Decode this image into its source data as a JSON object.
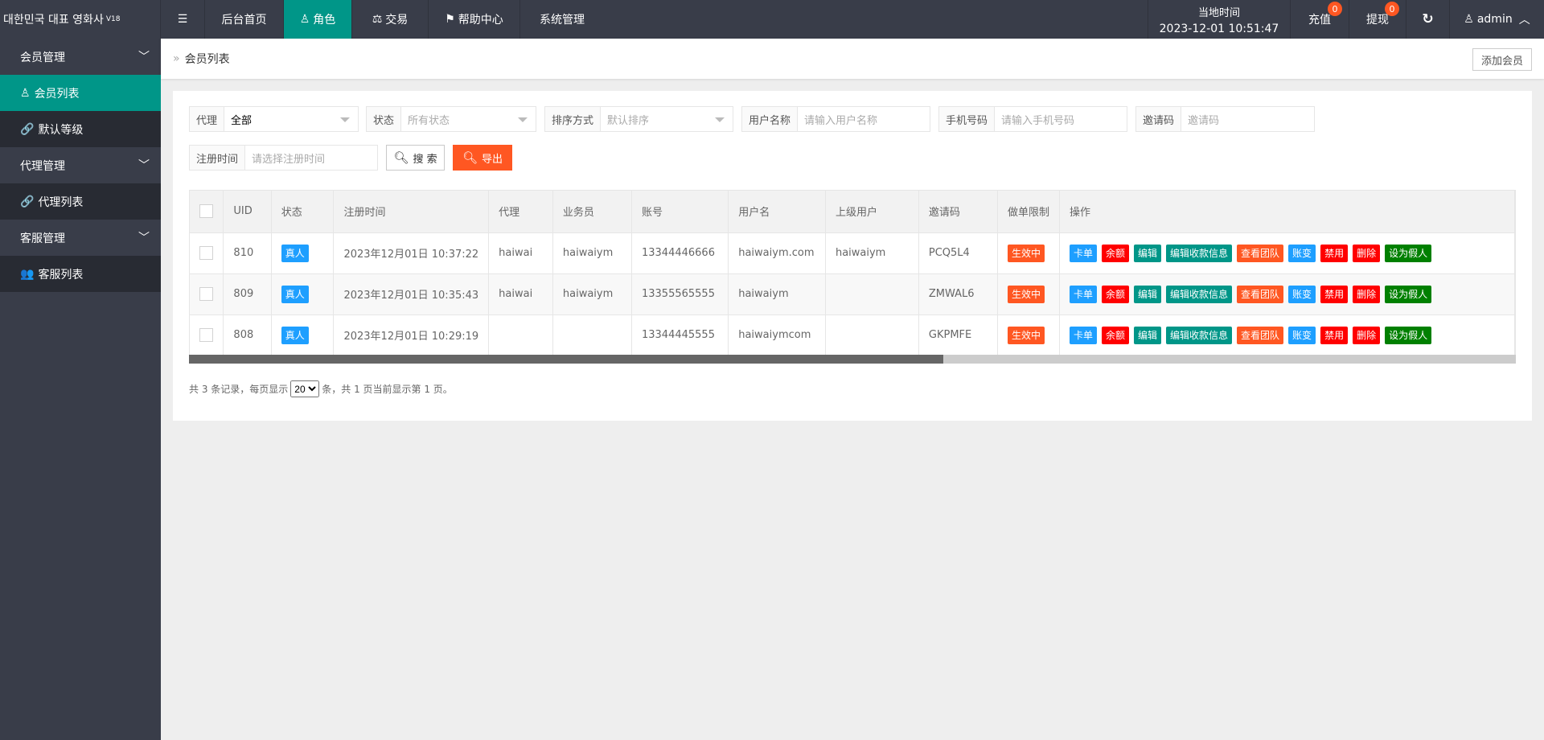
{
  "app": {
    "title": "대한민국 대표 영화사",
    "version": "V18"
  },
  "topnav": {
    "items": [
      {
        "label": "后台首页",
        "icon": ""
      },
      {
        "label": "角色",
        "icon": "user-icon",
        "active": true
      },
      {
        "label": "交易",
        "icon": "scale-icon"
      },
      {
        "label": "帮助中心",
        "icon": "flag-icon"
      },
      {
        "label": "系统管理",
        "icon": ""
      }
    ],
    "clock_label": "当地时间",
    "clock_value": "2023-12-01 10:51:47",
    "recharge": "充值",
    "recharge_count": "0",
    "withdraw": "提现",
    "withdraw_count": "0",
    "user": "admin"
  },
  "sidebar": {
    "groups": [
      {
        "label": "会员管理",
        "items": [
          {
            "label": "会员列表",
            "icon": "user-icon",
            "active": true
          },
          {
            "label": "默认等级",
            "icon": "link-icon"
          }
        ]
      },
      {
        "label": "代理管理",
        "items": [
          {
            "label": "代理列表",
            "icon": "link-icon"
          }
        ]
      },
      {
        "label": "客服管理",
        "items": [
          {
            "label": "客服列表",
            "icon": "users-icon"
          }
        ]
      }
    ]
  },
  "breadcrumb": {
    "current": "会员列表",
    "add_button": "添加会员"
  },
  "filters": {
    "agent": {
      "label": "代理",
      "value": "全部"
    },
    "status": {
      "label": "状态",
      "placeholder": "所有状态"
    },
    "sort": {
      "label": "排序方式",
      "placeholder": "默认排序"
    },
    "username": {
      "label": "用户名称",
      "placeholder": "请输入用户名称"
    },
    "phone": {
      "label": "手机号码",
      "placeholder": "请输入手机号码"
    },
    "invite": {
      "label": "邀请码",
      "placeholder": "邀请码"
    },
    "regtime": {
      "label": "注册时间",
      "placeholder": "请选择注册时间"
    },
    "search": "搜 索",
    "export": "导出"
  },
  "table": {
    "columns": [
      "UID",
      "状态",
      "注册时间",
      "代理",
      "业务员",
      "账号",
      "用户名",
      "上级用户",
      "邀请码",
      "做单限制",
      "操作"
    ],
    "rows": [
      {
        "uid": "810",
        "status": "真人",
        "time": "2023年12月01日 10:37:22",
        "agent": "haiwai",
        "staff": "haiwaiym",
        "account": "13344446666",
        "username": "haiwaiym.com",
        "parent": "haiwaiym",
        "invite": "PCQ5L4",
        "limit": "生效中"
      },
      {
        "uid": "809",
        "status": "真人",
        "time": "2023年12月01日 10:35:43",
        "agent": "haiwai",
        "staff": "haiwaiym",
        "account": "13355565555",
        "username": "haiwaiym",
        "parent": "",
        "invite": "ZMWAL6",
        "limit": "生效中"
      },
      {
        "uid": "808",
        "status": "真人",
        "time": "2023年12月01日 10:29:19",
        "agent": "",
        "staff": "",
        "account": "13344445555",
        "username": "haiwaiymcom",
        "parent": "",
        "invite": "GKPMFE",
        "limit": "生效中"
      }
    ],
    "actions": [
      {
        "label": "卡单",
        "color": "#1E9FFF"
      },
      {
        "label": "余额",
        "color": "#FF0000"
      },
      {
        "label": "编辑",
        "color": "#009688"
      },
      {
        "label": "编辑收款信息",
        "color": "#009688"
      },
      {
        "label": "查看团队",
        "color": "#FF5722"
      },
      {
        "label": "账变",
        "color": "#1E9FFF"
      },
      {
        "label": "禁用",
        "color": "#FF0000"
      },
      {
        "label": "删除",
        "color": "#FF0000"
      },
      {
        "label": "设为假人",
        "color": "#008000"
      }
    ]
  },
  "pager": {
    "prefix": "共 3 条记录，每页显示",
    "page_size": "20",
    "suffix": "条，共 1 页当前显示第 1 页。"
  },
  "colors": {
    "accent": "#009688",
    "dark": "#393D49",
    "orange": "#FF5722",
    "blue": "#1E9FFF"
  }
}
